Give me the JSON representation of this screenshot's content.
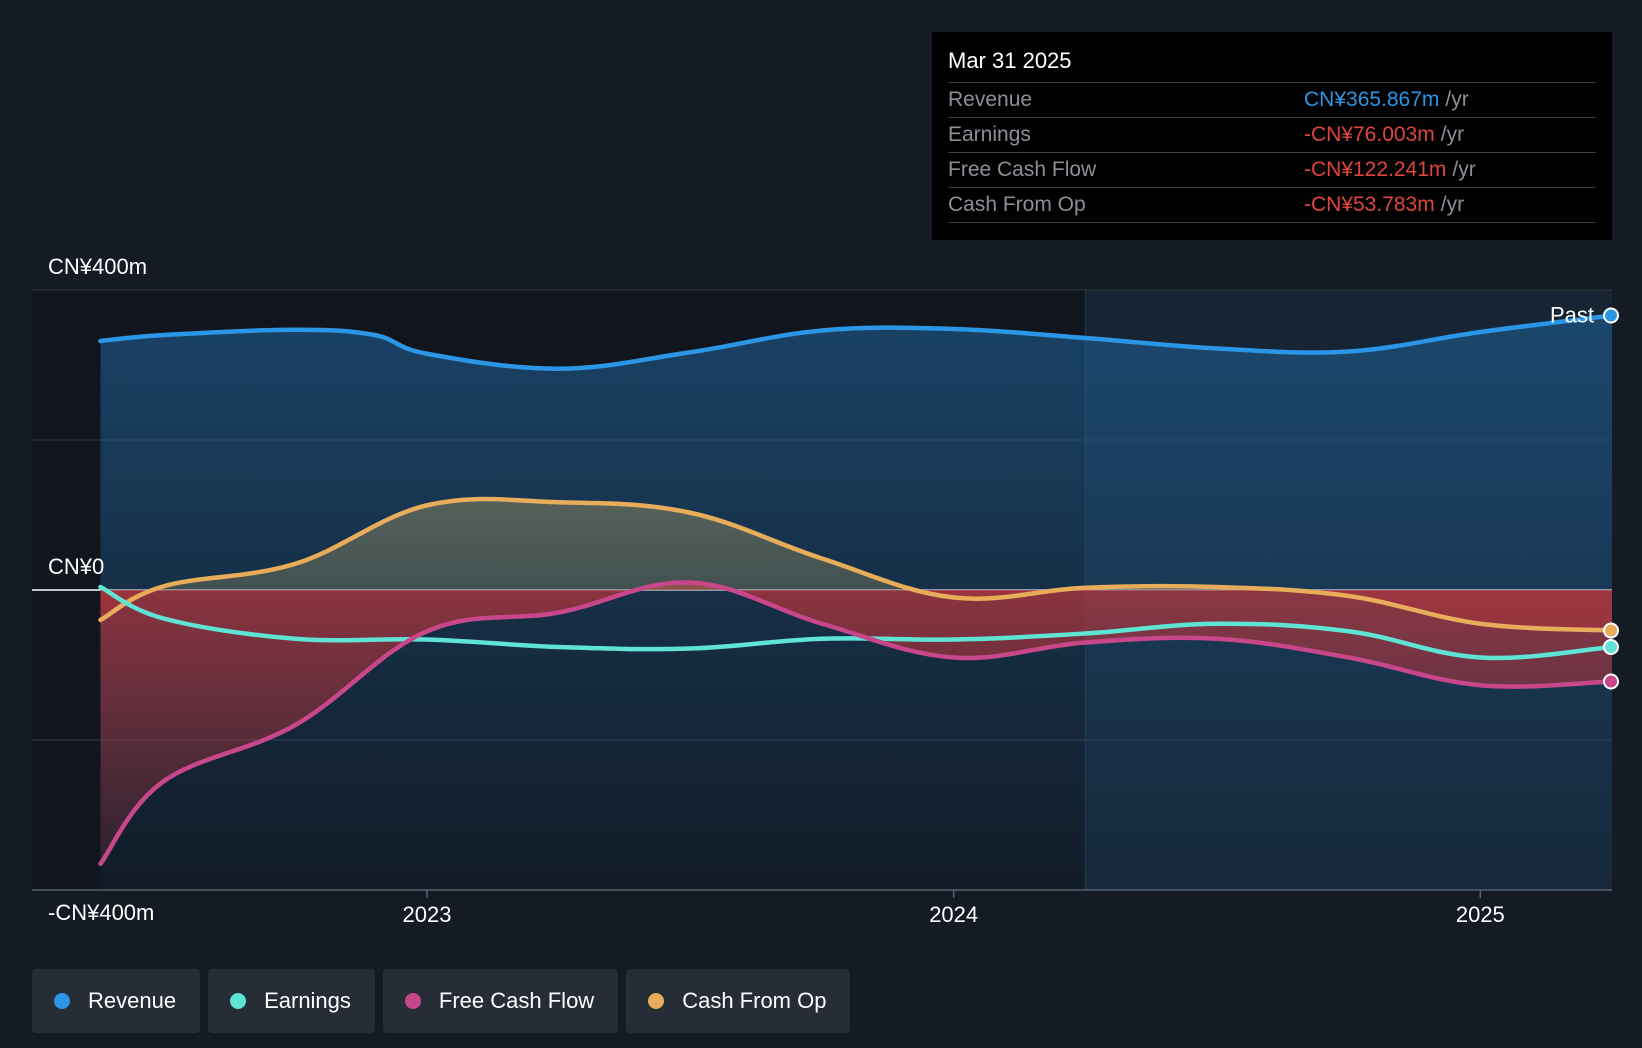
{
  "colors": {
    "revenue": "#2b95e6",
    "earnings": "#5fe3d5",
    "fcf": "#c8478a",
    "cfo": "#e8ad5a",
    "negative": "#e0443e"
  },
  "tooltip": {
    "date": "Mar 31 2025",
    "rows": [
      {
        "label": "Revenue",
        "value": "CN¥365.867m",
        "unit": "/yr",
        "color": "#2b95e6"
      },
      {
        "label": "Earnings",
        "value": "-CN¥76.003m",
        "unit": "/yr",
        "color": "#e0443e"
      },
      {
        "label": "Free Cash Flow",
        "value": "-CN¥122.241m",
        "unit": "/yr",
        "color": "#e0443e"
      },
      {
        "label": "Cash From Op",
        "value": "-CN¥53.783m",
        "unit": "/yr",
        "color": "#e0443e"
      }
    ]
  },
  "legend": [
    {
      "label": "Revenue",
      "color": "#2b95e6"
    },
    {
      "label": "Earnings",
      "color": "#5fe3d5"
    },
    {
      "label": "Free Cash Flow",
      "color": "#c8478a"
    },
    {
      "label": "Cash From Op",
      "color": "#e8ad5a"
    }
  ],
  "chart_data": {
    "type": "area",
    "y_axis": {
      "labels": [
        "CN¥400m",
        "CN¥0",
        "-CN¥400m"
      ],
      "ylim": [
        -400,
        400
      ]
    },
    "x_axis": {
      "ticks": [
        "2023",
        "2024",
        "2025"
      ],
      "xlim": [
        2022.25,
        2025.25
      ]
    },
    "past_label": "Past",
    "past_divider_x": 2024.25,
    "series": [
      {
        "name": "Revenue",
        "key": "revenue",
        "x": [
          2022.25,
          2022.5,
          2022.75,
          2022.9,
          2023.0,
          2023.25,
          2023.5,
          2023.75,
          2024.0,
          2024.25,
          2024.5,
          2024.75,
          2025.0,
          2025.25
        ],
        "y": [
          332,
          340,
          347,
          340,
          315,
          295,
          317,
          346,
          348,
          336,
          322,
          318,
          344,
          366
        ]
      },
      {
        "name": "Earnings",
        "key": "earnings",
        "x": [
          2022.25,
          2022.5,
          2022.75,
          2023.0,
          2023.25,
          2023.5,
          2023.75,
          2024.0,
          2024.25,
          2024.5,
          2024.75,
          2025.0,
          2025.25
        ],
        "y": [
          4,
          -38,
          -65,
          -66,
          -76,
          -78,
          -65,
          -66,
          -58,
          -45,
          -55,
          -90,
          -76
        ]
      },
      {
        "name": "Free Cash Flow",
        "key": "fcf",
        "x": [
          2022.25,
          2022.5,
          2022.75,
          2023.0,
          2023.25,
          2023.5,
          2023.75,
          2024.0,
          2024.25,
          2024.5,
          2024.75,
          2025.0,
          2025.25
        ],
        "y": [
          -365,
          -255,
          -180,
          -55,
          -30,
          10,
          -45,
          -90,
          -70,
          -65,
          -90,
          -127,
          -122
        ]
      },
      {
        "name": "Cash From Op",
        "key": "cfo",
        "x": [
          2022.25,
          2022.5,
          2022.75,
          2023.0,
          2023.25,
          2023.5,
          2023.75,
          2024.0,
          2024.25,
          2024.5,
          2024.75,
          2025.0,
          2025.25
        ],
        "y": [
          -40,
          5,
          35,
          113,
          117,
          103,
          42,
          -10,
          3,
          4,
          -8,
          -45,
          -54
        ]
      }
    ]
  }
}
